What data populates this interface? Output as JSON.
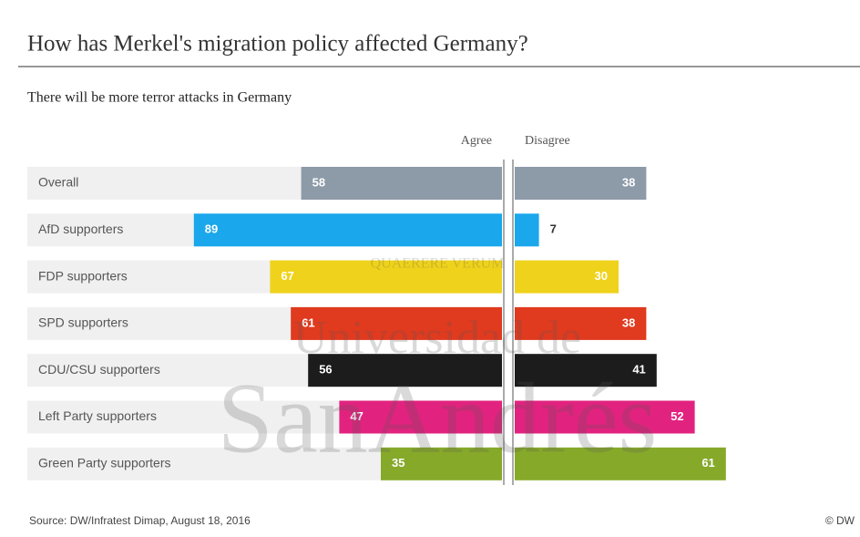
{
  "chart_data": {
    "type": "diverging_bar",
    "title": "How has Merkel's migration policy affected Germany?",
    "subtitle": "There will be more terror attacks in Germany",
    "categories": [
      "Overall",
      "AfD supporters",
      "FDP supporters",
      "SPD supporters",
      "CDU/CSU supporters",
      "Left Party supporters",
      "Green Party supporters"
    ],
    "colors": [
      "#8d9aa8",
      "#1aa7ec",
      "#efd21b",
      "#e03a1f",
      "#1c1c1c",
      "#e1237f",
      "#86a92a"
    ],
    "series": [
      {
        "name": "Agree",
        "values": [
          58,
          89,
          67,
          61,
          56,
          47,
          35
        ]
      },
      {
        "name": "Disagree",
        "values": [
          38,
          7,
          30,
          38,
          41,
          52,
          61
        ]
      }
    ],
    "source": "Source: DW/Infratest Dimap, August 18, 2016",
    "credit": "© DW",
    "watermark": [
      "QUAERERE VERUM",
      "Universidad de",
      "SanAndrés"
    ]
  }
}
